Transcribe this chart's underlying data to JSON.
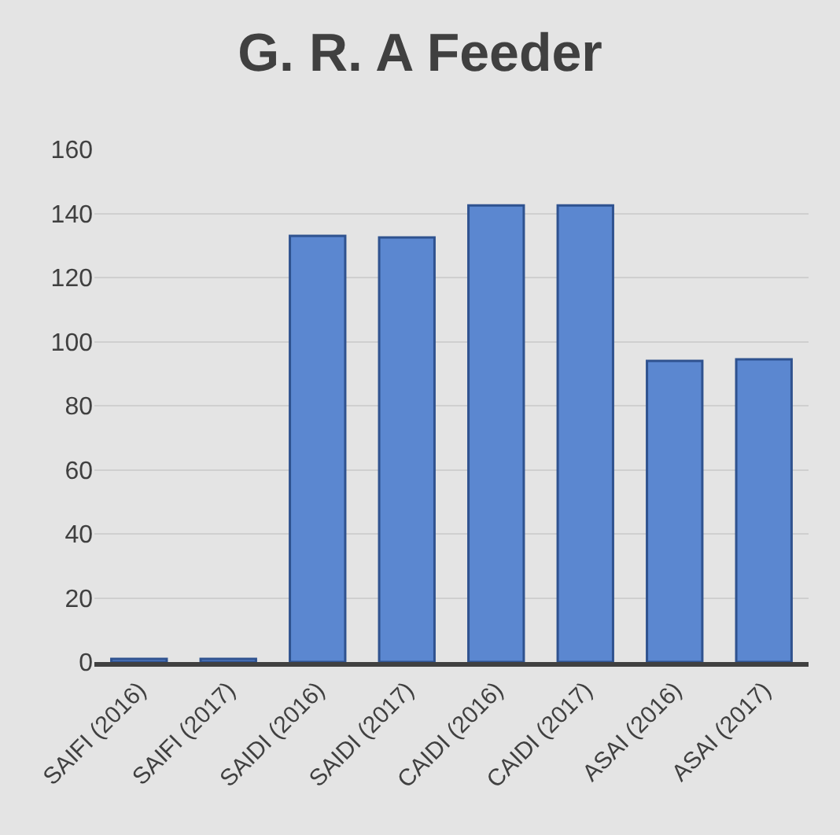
{
  "chart_data": {
    "type": "bar",
    "title": "G. R. A Feeder",
    "categories": [
      "SAIFI (2016)",
      "SAIFI (2017)",
      "SAIDI (2016)",
      "SAIDI (2017)",
      "CAIDI (2016)",
      "CAIDI (2017)",
      "ASAI (2016)",
      "ASAI (2017)"
    ],
    "values": [
      1,
      1,
      133,
      132.5,
      142.5,
      142.5,
      94,
      94.5
    ],
    "color": "#5b87d0",
    "ylim": [
      0,
      160
    ],
    "yticks": [
      0,
      20,
      40,
      60,
      80,
      100,
      120,
      140,
      160
    ],
    "grid": "y"
  }
}
